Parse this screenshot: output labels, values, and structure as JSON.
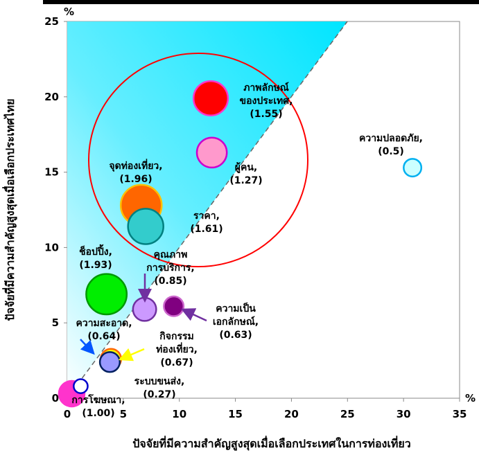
{
  "chart_data": {
    "type": "scatter",
    "xlabel": "ปัจจัยที่มีความสำคัญสูงสุดเมื่อเลือกประเทศในการท่องเที่ยว",
    "ylabel": "ปัจจัยที่มีความสำคัญสูงสุดเมื่อเลือกประเทศไทย",
    "x_unit": "%",
    "y_unit": "%",
    "xlim": [
      0,
      35
    ],
    "ylim": [
      0,
      25
    ],
    "x_ticks": [
      "0",
      "5",
      "10",
      "15",
      "20",
      "25",
      "30",
      "35"
    ],
    "y_ticks": [
      "0",
      "5",
      "10",
      "15",
      "20",
      "25"
    ],
    "grid": false,
    "reference_line": {
      "x": [
        0,
        25
      ],
      "y": [
        0,
        25
      ],
      "style": "dashed",
      "shaded_above": true
    },
    "points": [
      {
        "lines": [
          "ภาพลักษณ์",
          "ของประเทศ,",
          "(1.55)"
        ],
        "x": 12.8,
        "y": 19.9,
        "size": 1.55,
        "fill": "#ff0000",
        "stroke": "#ff33cc",
        "label_color": "#000000"
      },
      {
        "lines": [
          "ผู้คน,",
          "(1.27)"
        ],
        "x": 12.9,
        "y": 16.3,
        "size": 1.27,
        "fill": "#ff99cc",
        "stroke": "#cc00cc",
        "label_color": "#000000"
      },
      {
        "lines": [
          "ความปลอดภัย,",
          "(0.5)"
        ],
        "x": 30.8,
        "y": 15.3,
        "size": 0.5,
        "fill": "#ccffff",
        "stroke": "#00b0f0",
        "label_color": "#000000"
      },
      {
        "lines": [
          "จุดท่องเที่ยว,",
          "(1.96)"
        ],
        "x": 6.6,
        "y": 12.8,
        "size": 1.96,
        "fill": "#ff6600",
        "stroke": "#ffc000",
        "label_color": "#000000"
      },
      {
        "lines": [
          "ราคา,",
          "(1.61)"
        ],
        "x": 7.0,
        "y": 11.4,
        "size": 1.61,
        "fill": "#33cccc",
        "stroke": "#008080",
        "label_color": "#000000"
      },
      {
        "lines": [
          "ช็อปปิ้ง,",
          "(1.93)"
        ],
        "x": 3.5,
        "y": 6.9,
        "size": 1.93,
        "fill": "#00ee00",
        "stroke": "#009900",
        "label_color": "#000000"
      },
      {
        "lines": [
          "คุณภาพ",
          "การบริการ,",
          "(0.85)"
        ],
        "x": 6.9,
        "y": 5.9,
        "size": 0.85,
        "fill": "#cc99ff",
        "stroke": "#7030a0",
        "label_color": "#000000"
      },
      {
        "lines": [
          "ความเป็น",
          "เอกลักษณ์,",
          "(0.63)"
        ],
        "x": 9.5,
        "y": 6.1,
        "size": 0.63,
        "fill": "#800080",
        "stroke": "#cc66cc",
        "label_color": "#000000"
      },
      {
        "lines": [
          "ความสะอาด,",
          "(0.64)"
        ],
        "x": 3.8,
        "y": 2.4,
        "size": 0.64,
        "fill": "#9999ff",
        "stroke": "#002060",
        "label_color": "#000000"
      },
      {
        "lines": [
          "กิจกรรม",
          "ท่องเที่ยว,",
          "(0.67)"
        ],
        "x": 3.9,
        "y": 2.6,
        "size": 0.67,
        "fill": "#ffff00",
        "stroke": "#ff6600",
        "label_color": "#000000"
      },
      {
        "lines": [
          "ระบบขนส่ง,",
          "(0.27)"
        ],
        "x": 1.2,
        "y": 0.8,
        "size": 0.27,
        "fill": "#ffffff",
        "stroke": "#0000cc",
        "label_color": "#000000"
      },
      {
        "lines": [
          "การโฆษณา,",
          "(1.00)"
        ],
        "x": 0.4,
        "y": 0.3,
        "size": 1.0,
        "fill": "#ff33cc",
        "stroke": "#ff33cc",
        "label_color": "#ff33cc"
      }
    ]
  }
}
